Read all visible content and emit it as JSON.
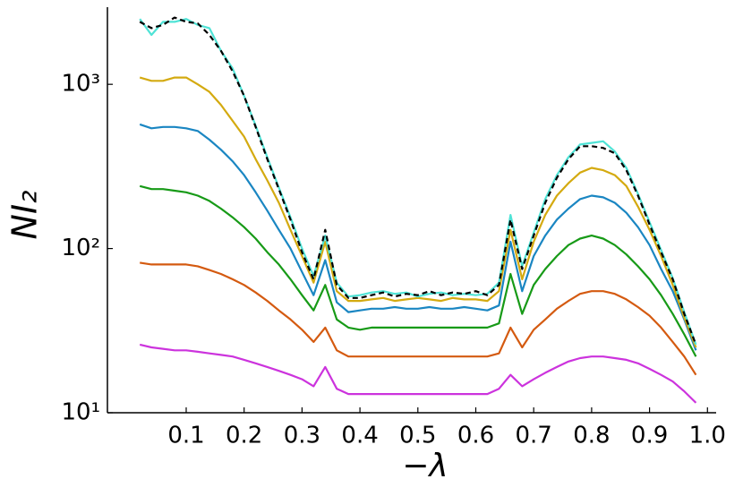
{
  "chart_data": {
    "type": "line",
    "xlabel": "−λ",
    "ylabel": "NI₂",
    "log_y": true,
    "xlim": [
      -0.036,
      1.015
    ],
    "ylim": [
      10,
      2950
    ],
    "xticks": [
      0.1,
      0.2,
      0.3,
      0.4,
      0.5,
      0.6,
      0.7,
      0.8,
      0.9,
      {
        "value": 1,
        "label": "1.0"
      }
    ],
    "yticks": [
      {
        "value": 10,
        "label": "10¹"
      },
      {
        "value": 100,
        "label": "10²"
      },
      {
        "value": 1000,
        "label": "10³"
      }
    ],
    "x": [
      0.02,
      0.04,
      0.06,
      0.08,
      0.1,
      0.12,
      0.14,
      0.16,
      0.18,
      0.2,
      0.22,
      0.24,
      0.26,
      0.28,
      0.3,
      0.32,
      0.34,
      0.36,
      0.38,
      0.4,
      0.42,
      0.44,
      0.46,
      0.48,
      0.5,
      0.52,
      0.54,
      0.56,
      0.58,
      0.6,
      0.62,
      0.64,
      0.66,
      0.68,
      0.7,
      0.72,
      0.74,
      0.76,
      0.78,
      0.8,
      0.82,
      0.84,
      0.86,
      0.88,
      0.9,
      0.92,
      0.94,
      0.96,
      0.98
    ],
    "series": [
      {
        "color": "#cc33dd",
        "values": [
          26,
          25,
          24.5,
          24,
          24,
          23.5,
          23,
          22.5,
          22,
          21,
          20,
          19,
          18,
          17,
          16,
          14.5,
          19,
          14,
          13,
          13,
          13,
          13,
          13,
          13,
          13,
          13,
          13,
          13,
          13,
          13,
          13,
          14,
          17,
          14.5,
          16,
          17.5,
          19,
          20.5,
          21.5,
          22,
          22,
          21.5,
          21,
          20,
          18.5,
          17,
          15.5,
          13.5,
          11.5
        ]
      },
      {
        "color": "#d45a10",
        "values": [
          82,
          80,
          80,
          80,
          80,
          78,
          74,
          70,
          65,
          60,
          54,
          48,
          42,
          37,
          32,
          27,
          33,
          24,
          22,
          22,
          22,
          22,
          22,
          22,
          22,
          22,
          22,
          22,
          22,
          22,
          22,
          23,
          33,
          25,
          32,
          37,
          43,
          48,
          53,
          55,
          55,
          53,
          49,
          44,
          39,
          33,
          27,
          22,
          17
        ]
      },
      {
        "color": "#179a17",
        "values": [
          240,
          230,
          230,
          225,
          220,
          210,
          195,
          175,
          155,
          135,
          115,
          95,
          80,
          65,
          52,
          42,
          60,
          37,
          33,
          32,
          33,
          33,
          33,
          33,
          33,
          33,
          33,
          33,
          33,
          33,
          33,
          35,
          70,
          40,
          60,
          75,
          90,
          105,
          115,
          120,
          115,
          105,
          92,
          78,
          65,
          52,
          40,
          30,
          22
        ]
      },
      {
        "color": "#1a86c2",
        "values": [
          570,
          540,
          550,
          550,
          540,
          520,
          460,
          400,
          340,
          280,
          220,
          170,
          130,
          100,
          72,
          52,
          85,
          47,
          41,
          42,
          43,
          43,
          44,
          43,
          43,
          44,
          43,
          43,
          44,
          43,
          42,
          45,
          110,
          55,
          90,
          120,
          150,
          175,
          200,
          210,
          205,
          190,
          165,
          135,
          105,
          75,
          55,
          37,
          24
        ]
      },
      {
        "color": "#d4aa10",
        "values": [
          1100,
          1050,
          1050,
          1100,
          1100,
          1000,
          900,
          750,
          600,
          480,
          350,
          260,
          190,
          130,
          90,
          62,
          110,
          55,
          48,
          48,
          49,
          50,
          48,
          49,
          50,
          49,
          48,
          50,
          49,
          49,
          48,
          55,
          130,
          65,
          110,
          160,
          210,
          250,
          290,
          310,
          300,
          280,
          240,
          180,
          130,
          90,
          60,
          38,
          25
        ]
      },
      {
        "color": "#4fe3d6",
        "values": [
          2500,
          2000,
          2400,
          2400,
          2500,
          2300,
          2200,
          1600,
          1250,
          850,
          560,
          360,
          235,
          155,
          100,
          68,
          120,
          62,
          51,
          52,
          54,
          55,
          53,
          54,
          51,
          53,
          54,
          52,
          53,
          52,
          53,
          62,
          160,
          78,
          125,
          200,
          280,
          360,
          430,
          440,
          450,
          390,
          310,
          215,
          145,
          98,
          66,
          41,
          26
        ]
      },
      {
        "color": "#000000",
        "dashed": true,
        "values": [
          2400,
          2200,
          2300,
          2550,
          2400,
          2350,
          2000,
          1600,
          1200,
          850,
          550,
          350,
          230,
          150,
          95,
          65,
          130,
          60,
          50,
          50,
          52,
          54,
          51,
          53,
          52,
          55,
          52,
          54,
          53,
          55,
          52,
          60,
          150,
          75,
          120,
          190,
          270,
          350,
          420,
          420,
          410,
          380,
          300,
          210,
          140,
          95,
          65,
          40,
          26
        ]
      }
    ]
  }
}
